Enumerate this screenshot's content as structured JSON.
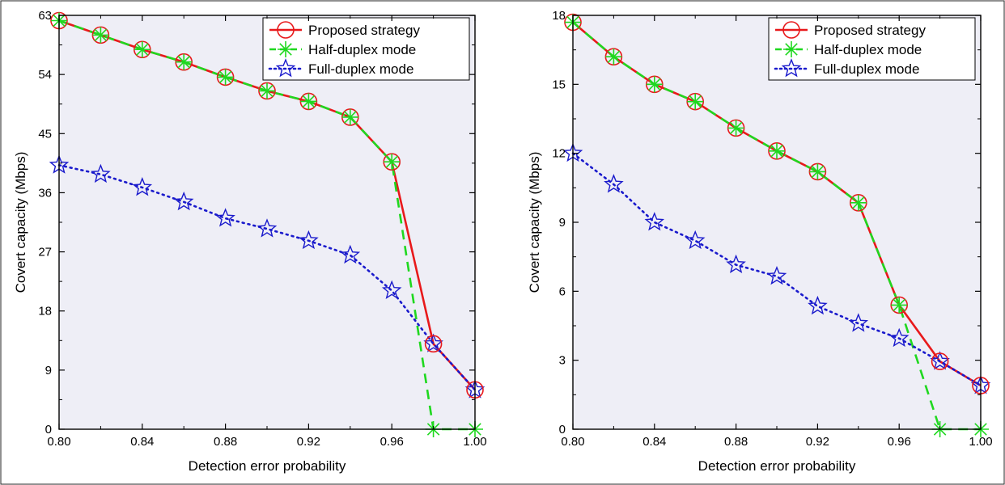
{
  "chart_data": [
    {
      "type": "line",
      "title": "",
      "xlabel": "Detection error probability",
      "ylabel": "Covert capacity (Mbps)",
      "xlim": [
        0.8,
        1.0
      ],
      "ylim": [
        0,
        63
      ],
      "x_ticks": [
        "0.80",
        "0.84",
        "0.88",
        "0.92",
        "0.96",
        "1.00"
      ],
      "y_ticks": [
        "0",
        "9",
        "18",
        "27",
        "36",
        "45",
        "54",
        "63"
      ],
      "legend": "top-right",
      "grid": false,
      "plot_background": "#eeeef6",
      "series": [
        {
          "name": "Proposed strategy",
          "color": "#e8191b",
          "line_style": "solid",
          "marker": "circle",
          "x": [
            0.8,
            0.82,
            0.84,
            0.86,
            0.88,
            0.9,
            0.92,
            0.94,
            0.96,
            0.98,
            1.0
          ],
          "values": [
            62.2,
            60.0,
            57.8,
            55.9,
            53.6,
            51.5,
            49.9,
            47.5,
            40.7,
            13.0,
            6.0
          ]
        },
        {
          "name": "Half-duplex mode",
          "color": "#1fd81f",
          "line_style": "dashed",
          "marker": "asterisk",
          "x": [
            0.8,
            0.82,
            0.84,
            0.86,
            0.88,
            0.9,
            0.92,
            0.94,
            0.96,
            0.98,
            1.0
          ],
          "values": [
            62.2,
            60.0,
            57.8,
            55.9,
            53.6,
            51.5,
            49.9,
            47.5,
            40.7,
            0.0,
            0.0
          ]
        },
        {
          "name": "Full-duplex mode",
          "color": "#1a1acc",
          "line_style": "dotted",
          "marker": "star",
          "x": [
            0.8,
            0.82,
            0.84,
            0.86,
            0.88,
            0.9,
            0.92,
            0.94,
            0.96,
            0.98,
            1.0
          ],
          "values": [
            40.2,
            38.8,
            36.8,
            34.6,
            32.1,
            30.5,
            28.7,
            26.5,
            21.1,
            13.0,
            6.0
          ]
        }
      ]
    },
    {
      "type": "line",
      "title": "",
      "xlabel": "Detection error probability",
      "ylabel": "Covert capacity (Mbps)",
      "xlim": [
        0.8,
        1.0
      ],
      "ylim": [
        0,
        18
      ],
      "x_ticks": [
        "0.80",
        "0.84",
        "0.88",
        "0.92",
        "0.96",
        "1.00"
      ],
      "y_ticks": [
        "0",
        "3",
        "6",
        "9",
        "12",
        "15",
        "18"
      ],
      "legend": "top-right",
      "grid": false,
      "plot_background": "#eeeef6",
      "series": [
        {
          "name": "Proposed strategy",
          "color": "#e8191b",
          "line_style": "solid",
          "marker": "circle",
          "x": [
            0.8,
            0.82,
            0.84,
            0.86,
            0.88,
            0.9,
            0.92,
            0.94,
            0.96,
            0.98,
            1.0
          ],
          "values": [
            17.7,
            16.2,
            15.0,
            14.25,
            13.1,
            12.1,
            11.2,
            9.85,
            5.4,
            2.95,
            1.9
          ]
        },
        {
          "name": "Half-duplex mode",
          "color": "#1fd81f",
          "line_style": "dashed",
          "marker": "asterisk",
          "x": [
            0.8,
            0.82,
            0.84,
            0.86,
            0.88,
            0.9,
            0.92,
            0.94,
            0.96,
            0.98,
            1.0
          ],
          "values": [
            17.7,
            16.2,
            15.0,
            14.25,
            13.1,
            12.1,
            11.2,
            9.85,
            5.4,
            0.0,
            0.0
          ]
        },
        {
          "name": "Full-duplex mode",
          "color": "#1a1acc",
          "line_style": "dotted",
          "marker": "star",
          "x": [
            0.8,
            0.82,
            0.84,
            0.86,
            0.88,
            0.9,
            0.92,
            0.94,
            0.96,
            0.98,
            1.0
          ],
          "values": [
            12.0,
            10.65,
            9.0,
            8.2,
            7.15,
            6.65,
            5.35,
            4.6,
            3.95,
            2.95,
            1.9
          ]
        }
      ]
    }
  ]
}
